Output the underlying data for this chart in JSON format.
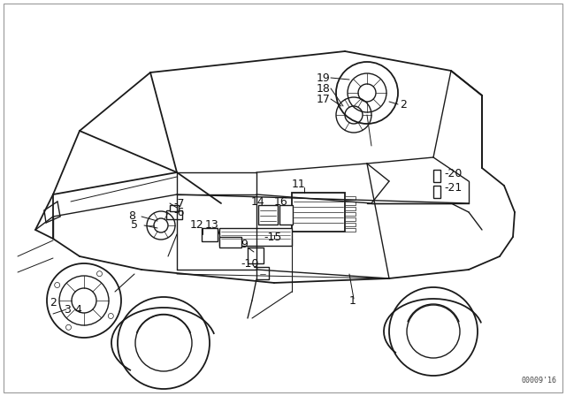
{
  "bg_color": "#ffffff",
  "line_color": "#1a1a1a",
  "text_color": "#111111",
  "diagram_code": "00009'16",
  "figsize": [
    6.4,
    4.48
  ],
  "dpi": 100,
  "border_color": "#cccccc"
}
